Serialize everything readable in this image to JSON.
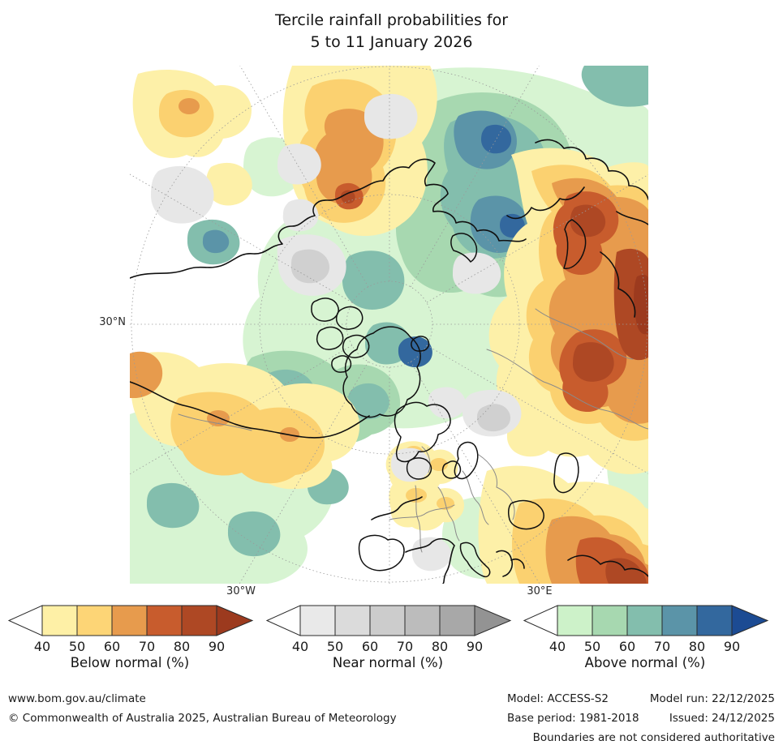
{
  "title": {
    "line1": "Tercile rainfall probabilities for",
    "line2": "5 to 11 January 2026"
  },
  "map": {
    "lat_label": "30°N",
    "lon_label_west": "30°W",
    "lon_label_east": "30°E"
  },
  "legends": [
    {
      "id": "below-normal",
      "title": "Below normal (%)",
      "ticks": [
        "40",
        "50",
        "60",
        "70",
        "80",
        "90"
      ],
      "colors": [
        "#fef0a6",
        "#fdd576",
        "#e79b4d",
        "#c85c2d",
        "#ae4824",
        "#9c3a1e"
      ]
    },
    {
      "id": "near-normal",
      "title": "Near normal (%)",
      "ticks": [
        "40",
        "50",
        "60",
        "70",
        "80",
        "90"
      ],
      "colors": [
        "#e9e9e9",
        "#dbdbdb",
        "#cccccc",
        "#bcbcbc",
        "#a8a8a8",
        "#939393"
      ]
    },
    {
      "id": "above-normal",
      "title": "Above normal (%)",
      "ticks": [
        "40",
        "50",
        "60",
        "70",
        "80",
        "90"
      ],
      "colors": [
        "#cdf2c9",
        "#a7d8b0",
        "#83bead",
        "#5b94a8",
        "#33689e",
        "#1c4b93"
      ]
    }
  ],
  "footer": {
    "website": "www.bom.gov.au/climate",
    "copyright": "© Commonwealth of Australia 2025, Australian Bureau of Meteorology",
    "model_label": "Model: ACCESS-S2",
    "model_run_label": "Model run: 22/12/2025",
    "base_period_label": "Base period: 1981-2018",
    "issued_label": "Issued: 24/12/2025",
    "disclaimer": "Boundaries are not considered authoritative"
  },
  "palette": {
    "y1": "#fdf0a8",
    "y2": "#fbd170",
    "o3": "#e79b4d",
    "o4": "#c85c2d",
    "r5": "#ae4824",
    "r6": "#9c3a1e",
    "g1": "#d7f4d2",
    "g2": "#a7d8b0",
    "t3": "#83bead",
    "b4": "#5b94a8",
    "b5": "#33689e",
    "n1": "#e7e7e7",
    "n2": "#d0d0d0",
    "coast": "#101010",
    "border": "#8a8a8a",
    "grat": "#9a9a9a"
  }
}
